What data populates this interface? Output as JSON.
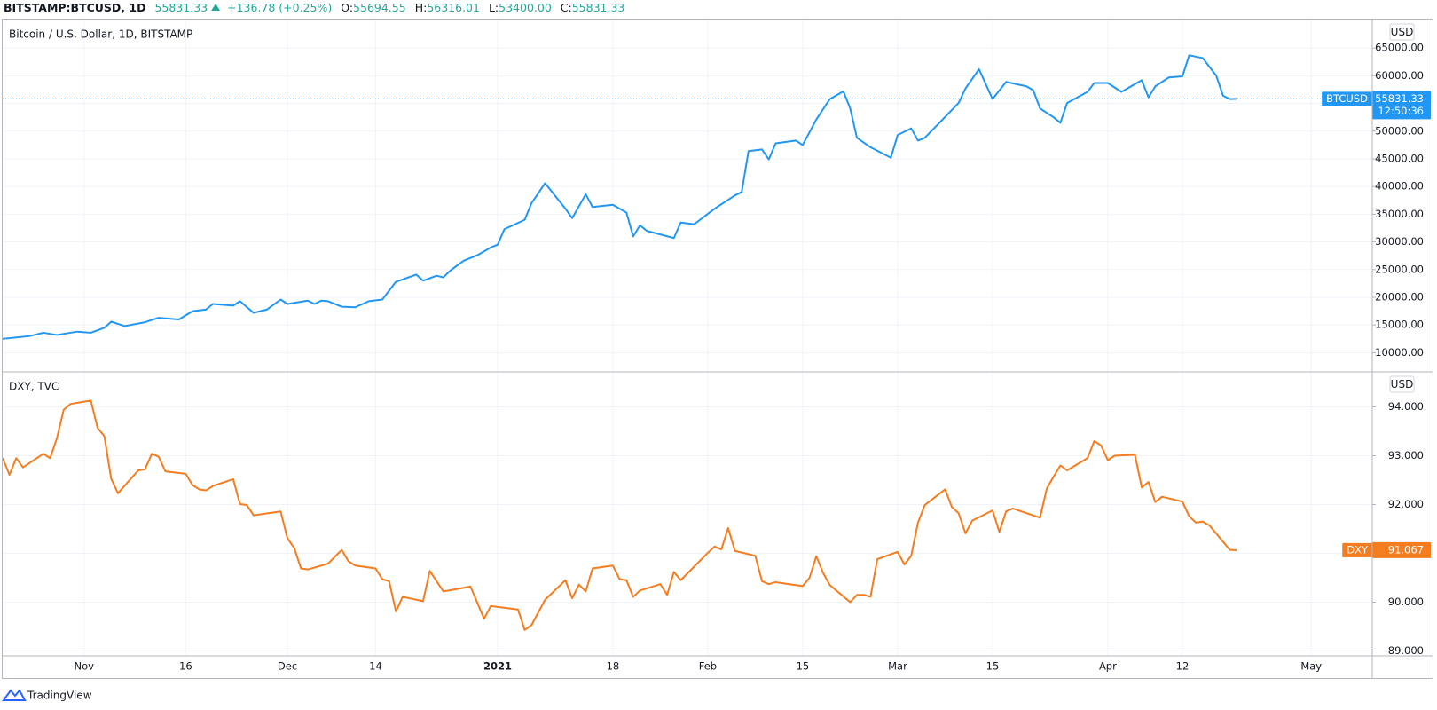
{
  "header": {
    "symbol": "BITSTAMP:BTCUSD, 1D",
    "last": "55831.33",
    "change": "+136.78 (+0.25%)",
    "ohlc": [
      {
        "label": "O:",
        "value": "55694.55"
      },
      {
        "label": "H:",
        "value": "56316.01"
      },
      {
        "label": "L:",
        "value": "53400.00"
      },
      {
        "label": "C:",
        "value": "55831.33"
      }
    ]
  },
  "chart_data": [
    {
      "type": "line",
      "title": "Bitcoin / U.S. Dollar, 1D, BITSTAMP",
      "currency": "USD",
      "countdown": "12:50:36",
      "price_line": true,
      "xlim": [
        "Oct 20",
        "May 10"
      ],
      "ylim": [
        6700,
        70000
      ],
      "grid": true,
      "yticks": [
        {
          "value": 10000,
          "label": "10000.00"
        },
        {
          "value": 15000,
          "label": "15000.00"
        },
        {
          "value": 20000,
          "label": "20000.00"
        },
        {
          "value": 25000,
          "label": "25000.00"
        },
        {
          "value": 30000,
          "label": "30000.00"
        },
        {
          "value": 35000,
          "label": "35000.00"
        },
        {
          "value": 40000,
          "label": "40000.00"
        },
        {
          "value": 45000,
          "label": "45000.00"
        },
        {
          "value": 50000,
          "label": "50000.00"
        },
        {
          "value": 55000,
          "label": "55000.00"
        },
        {
          "value": 60000,
          "label": "60000.00"
        },
        {
          "value": 65000,
          "label": "65000.00"
        }
      ],
      "series": [
        {
          "name": "BTCUSD",
          "color": "#2196f3",
          "x": [
            "Oct 20",
            "Oct 24",
            "Oct 26",
            "Oct 28",
            "Oct 31",
            "Nov 2",
            "Nov 4",
            "Nov 5",
            "Nov 7",
            "Nov 10",
            "Nov 12",
            "Nov 15",
            "Nov 17",
            "Nov 19",
            "Nov 20",
            "Nov 23",
            "Nov 24",
            "Nov 26",
            "Nov 28",
            "Nov 30",
            "Dec 1",
            "Dec 4",
            "Dec 5",
            "Dec 6",
            "Dec 7",
            "Dec 9",
            "Dec 11",
            "Dec 13",
            "Dec 15",
            "Dec 17",
            "Dec 20",
            "Dec 21",
            "Dec 23",
            "Dec 24",
            "Dec 25",
            "Dec 27",
            "Dec 29",
            "Dec 31",
            "Jan 1",
            "Jan 2",
            "Jan 5",
            "Jan 6",
            "Jan 8",
            "Jan 11",
            "Jan 12",
            "Jan 14",
            "Jan 15",
            "Jan 18",
            "Jan 20",
            "Jan 21",
            "Jan 22",
            "Jan 23",
            "Jan 27",
            "Jan 28",
            "Jan 30",
            "Feb 2",
            "Feb 5",
            "Feb 6",
            "Feb 7",
            "Feb 9",
            "Feb 10",
            "Feb 11",
            "Feb 14",
            "Feb 15",
            "Feb 17",
            "Feb 19",
            "Feb 21",
            "Feb 22",
            "Feb 23",
            "Feb 25",
            "Feb 28",
            "Mar 1",
            "Mar 3",
            "Mar 4",
            "Mar 5",
            "Mar 7",
            "Mar 10",
            "Mar 11",
            "Mar 13",
            "Mar 15",
            "Mar 17",
            "Mar 20",
            "Mar 21",
            "Mar 22",
            "Mar 24",
            "Mar 25",
            "Mar 26",
            "Mar 29",
            "Mar 30",
            "Apr 1",
            "Apr 3",
            "Apr 6",
            "Apr 7",
            "Apr 8",
            "Apr 10",
            "Apr 12",
            "Apr 13",
            "Apr 15",
            "Apr 17",
            "Apr 18",
            "Apr 19",
            "Apr 20"
          ],
          "values": [
            12500,
            13000,
            13600,
            13200,
            13800,
            13600,
            14500,
            15600,
            14800,
            15500,
            16300,
            16000,
            17500,
            17800,
            18800,
            18500,
            19300,
            17200,
            17800,
            19600,
            18800,
            19400,
            18800,
            19400,
            19300,
            18300,
            18200,
            19300,
            19600,
            22800,
            24100,
            23000,
            23900,
            23600,
            24800,
            26600,
            27600,
            29000,
            29500,
            32300,
            34000,
            37000,
            40600,
            36000,
            34300,
            38600,
            36300,
            36700,
            35300,
            31000,
            33000,
            32000,
            30700,
            33500,
            33200,
            36000,
            38400,
            39000,
            46400,
            46700,
            44900,
            47800,
            48300,
            47500,
            52100,
            55800,
            57200,
            54100,
            48800,
            47100,
            45200,
            49300,
            50500,
            48300,
            48800,
            51300,
            55100,
            57700,
            61200,
            55800,
            58900,
            58100,
            57400,
            54100,
            52500,
            51500,
            55100,
            57100,
            58700,
            58700,
            57100,
            59200,
            56100,
            58100,
            59700,
            59900,
            63700,
            63200,
            60000,
            56400,
            55800,
            55831.33
          ]
        }
      ]
    },
    {
      "type": "line",
      "title": "DXY, TVC",
      "currency": "USD",
      "price_line": false,
      "xlim": [
        "Oct 20",
        "May 10"
      ],
      "ylim": [
        88.9,
        94.7
      ],
      "grid": true,
      "yticks": [
        {
          "value": 89,
          "label": "89.000"
        },
        {
          "value": 90,
          "label": "90.000"
        },
        {
          "value": 91,
          "label": "91.000"
        },
        {
          "value": 92,
          "label": "92.000"
        },
        {
          "value": 93,
          "label": "93.000"
        },
        {
          "value": 94,
          "label": "94.000"
        }
      ],
      "xticks": [
        {
          "value": "Nov 1",
          "label": "Nov"
        },
        {
          "value": "Nov 16",
          "label": "16"
        },
        {
          "value": "Dec 1",
          "label": "Dec"
        },
        {
          "value": "Dec 14",
          "label": "14"
        },
        {
          "value": "Jan 1",
          "label": "2021"
        },
        {
          "value": "Jan 18",
          "label": "18"
        },
        {
          "value": "Feb 1",
          "label": "Feb"
        },
        {
          "value": "Feb 15",
          "label": "15"
        },
        {
          "value": "Mar 1",
          "label": "Mar"
        },
        {
          "value": "Mar 15",
          "label": "15"
        },
        {
          "value": "Apr 1",
          "label": "Apr"
        },
        {
          "value": "Apr 12",
          "label": "12"
        },
        {
          "value": "May 1",
          "label": "May"
        }
      ],
      "series": [
        {
          "name": "DXY",
          "color": "#f57c1f",
          "x": [
            "Oct 20",
            "Oct 21",
            "Oct 22",
            "Oct 23",
            "Oct 26",
            "Oct 27",
            "Oct 28",
            "Oct 29",
            "Oct 30",
            "Nov 2",
            "Nov 3",
            "Nov 4",
            "Nov 5",
            "Nov 6",
            "Nov 9",
            "Nov 10",
            "Nov 11",
            "Nov 12",
            "Nov 13",
            "Nov 16",
            "Nov 17",
            "Nov 18",
            "Nov 19",
            "Nov 20",
            "Nov 23",
            "Nov 24",
            "Nov 25",
            "Nov 26",
            "Nov 30",
            "Dec 1",
            "Dec 2",
            "Dec 3",
            "Dec 4",
            "Dec 7",
            "Dec 9",
            "Dec 10",
            "Dec 11",
            "Dec 14",
            "Dec 15",
            "Dec 16",
            "Dec 17",
            "Dec 18",
            "Dec 21",
            "Dec 22",
            "Dec 23",
            "Dec 24",
            "Dec 28",
            "Dec 30",
            "Dec 31",
            "Jan 4",
            "Jan 5",
            "Jan 6",
            "Jan 8",
            "Jan 11",
            "Jan 12",
            "Jan 13",
            "Jan 14",
            "Jan 15",
            "Jan 18",
            "Jan 19",
            "Jan 20",
            "Jan 21",
            "Jan 22",
            "Jan 25",
            "Jan 26",
            "Jan 27",
            "Jan 28",
            "Feb 1",
            "Feb 2",
            "Feb 3",
            "Feb 4",
            "Feb 5",
            "Feb 8",
            "Feb 9",
            "Feb 10",
            "Feb 11",
            "Feb 15",
            "Feb 16",
            "Feb 17",
            "Feb 18",
            "Feb 19",
            "Feb 22",
            "Feb 23",
            "Feb 24",
            "Feb 25",
            "Feb 26",
            "Mar 1",
            "Mar 2",
            "Mar 3",
            "Mar 4",
            "Mar 5",
            "Mar 8",
            "Mar 9",
            "Mar 10",
            "Mar 11",
            "Mar 12",
            "Mar 15",
            "Mar 16",
            "Mar 17",
            "Mar 18",
            "Mar 22",
            "Mar 23",
            "Mar 24",
            "Mar 25",
            "Mar 26",
            "Mar 29",
            "Mar 30",
            "Mar 31",
            "Apr 1",
            "Apr 2",
            "Apr 5",
            "Apr 6",
            "Apr 7",
            "Apr 8",
            "Apr 9",
            "Apr 12",
            "Apr 13",
            "Apr 14",
            "Apr 15",
            "Apr 16",
            "Apr 19",
            "Apr 20"
          ],
          "values": [
            92.95,
            92.61,
            92.95,
            92.76,
            93.04,
            92.95,
            93.36,
            93.94,
            94.06,
            94.13,
            93.57,
            93.4,
            92.53,
            92.23,
            92.7,
            92.72,
            93.04,
            92.98,
            92.68,
            92.63,
            92.4,
            92.31,
            92.29,
            92.38,
            92.52,
            92.01,
            91.99,
            91.78,
            91.86,
            91.31,
            91.11,
            90.69,
            90.67,
            90.79,
            91.07,
            90.84,
            90.75,
            90.69,
            90.47,
            90.43,
            89.81,
            90.11,
            90.02,
            90.64,
            90.43,
            90.22,
            90.32,
            89.66,
            89.92,
            89.85,
            89.43,
            89.53,
            90.05,
            90.45,
            90.08,
            90.36,
            90.22,
            90.69,
            90.75,
            90.47,
            90.45,
            90.11,
            90.24,
            90.37,
            90.15,
            90.62,
            90.45,
            91.01,
            91.14,
            91.08,
            91.52,
            91.05,
            90.95,
            90.43,
            90.37,
            90.41,
            90.33,
            90.5,
            90.94,
            90.6,
            90.35,
            90.0,
            90.15,
            90.15,
            90.11,
            90.88,
            91.03,
            90.77,
            90.95,
            91.63,
            91.99,
            92.31,
            91.95,
            91.82,
            91.41,
            91.67,
            91.88,
            91.44,
            91.86,
            91.92,
            91.73,
            92.33,
            92.57,
            92.8,
            92.7,
            92.95,
            93.3,
            93.21,
            92.91,
            93.0,
            93.02,
            92.35,
            92.46,
            92.05,
            92.16,
            92.06,
            91.76,
            91.63,
            91.65,
            91.57,
            91.07,
            91.067
          ]
        }
      ]
    }
  ],
  "footer": {
    "brand": "TradingView"
  }
}
